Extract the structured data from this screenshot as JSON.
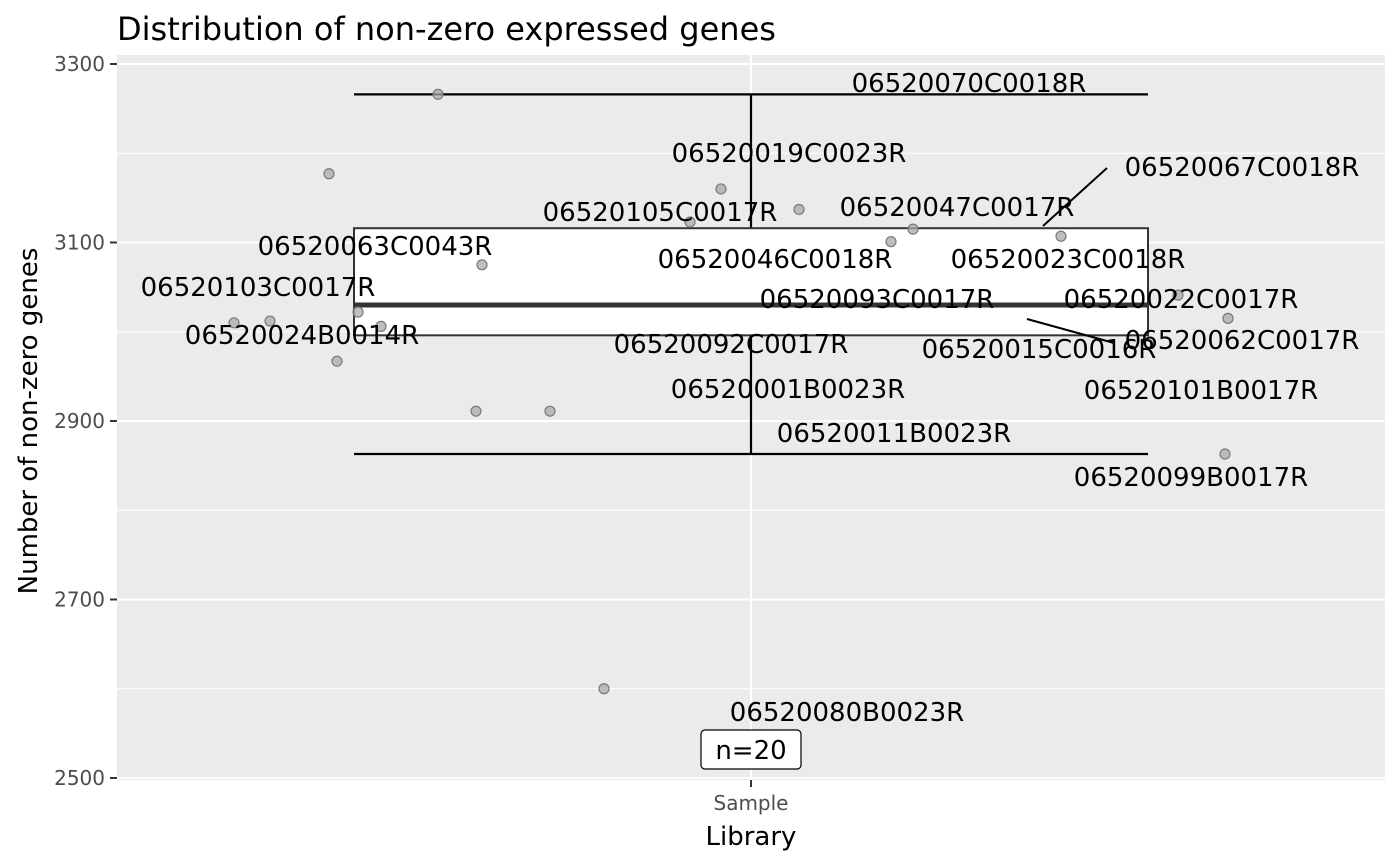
{
  "chart_data": {
    "type": "box",
    "title": "Distribution of non-zero expressed genes",
    "xlabel": "Library",
    "ylabel": "Number of non-zero genes",
    "categories": [
      "Sample"
    ],
    "ylim": [
      2500,
      3300
    ],
    "yticks": [
      2500,
      2700,
      2900,
      3100,
      3300
    ],
    "grid": true,
    "box": {
      "whisker_low": 2863,
      "q1": 2996,
      "median": 3030,
      "q3": 3116,
      "whisker_high": 3266
    },
    "count_label": "n=20",
    "points": [
      {
        "label": "06520070C0018R",
        "y": 3266
      },
      {
        "label": "06520019C0023R",
        "y": 3160
      },
      {
        "label": "06520067C0018R",
        "y": 3107
      },
      {
        "label": "06520105C0017R",
        "y": 3123
      },
      {
        "label": "06520047C0017R",
        "y": 3115
      },
      {
        "label": "06520063C0043R",
        "y": 3075
      },
      {
        "label": "06520046C0018R",
        "y": 3137
      },
      {
        "label": "06520023C0018R",
        "y": 3101
      },
      {
        "label": "06520103C0017R",
        "y": 3010
      },
      {
        "label": "06520093C0017R",
        "y": 3006
      },
      {
        "label": "06520022C0017R",
        "y": 3041
      },
      {
        "label": "06520024B0014R",
        "y": 2967
      },
      {
        "label": "06520062C0017R",
        "y": 3015
      },
      {
        "label": "06520092C0017R",
        "y": 3177
      },
      {
        "label": "06520015C0016R",
        "y": 3022
      },
      {
        "label": "06520001B0023R",
        "y": 2911
      },
      {
        "label": "06520101B0017R",
        "y": 3012
      },
      {
        "label": "06520011B0023R",
        "y": 2911
      },
      {
        "label": "06520099B0017R",
        "y": 2863
      },
      {
        "label": "06520080B0023R",
        "y": 2600
      }
    ]
  }
}
